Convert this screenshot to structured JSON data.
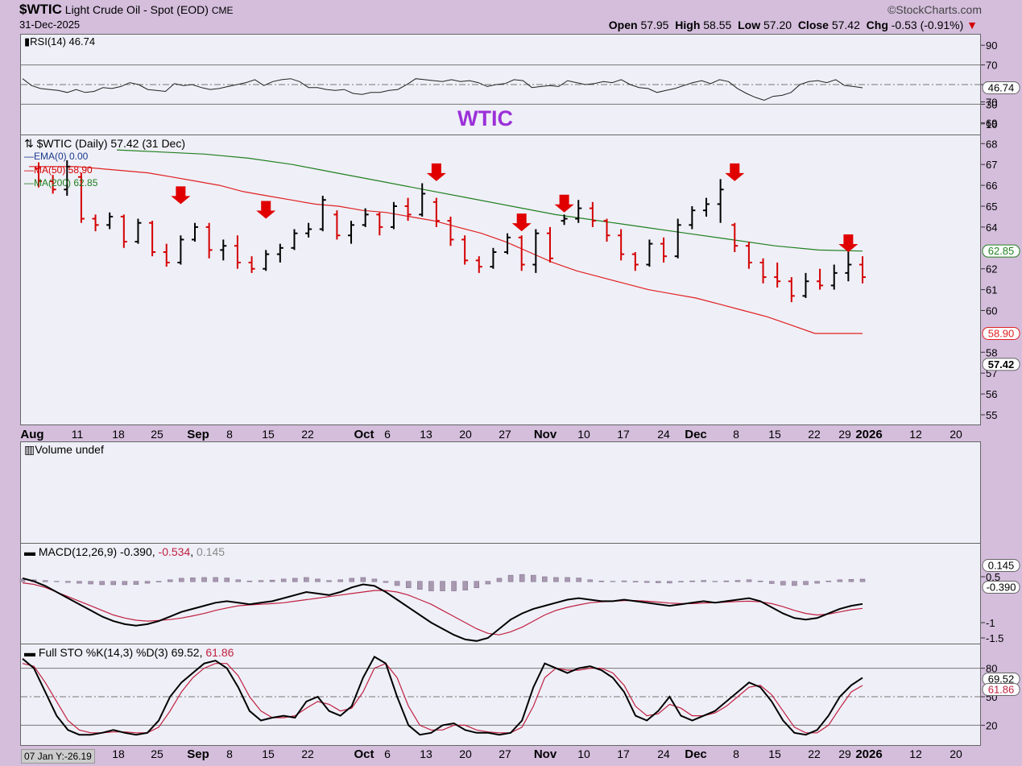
{
  "header": {
    "symbol": "$WTIC",
    "name": "Light Crude Oil - Spot (EOD)",
    "exchange": "CME",
    "date": "31-Dec-2025",
    "copyright": "©StockCharts.com",
    "open_label": "Open",
    "open": "57.95",
    "high_label": "High",
    "high": "58.55",
    "low_label": "Low",
    "low": "57.20",
    "close_label": "Close",
    "close": "57.42",
    "chg_label": "Chg",
    "chg": "-0.53 (-0.91%)",
    "chg_arrow": "▼"
  },
  "annotation": "WTIC",
  "cursor_readout": "07 Jan Y:-26.19",
  "x_axis": {
    "labels": [
      "Aug",
      "11",
      "18",
      "25",
      "Sep",
      "8",
      "15",
      "22",
      "Oct",
      "6",
      "13",
      "20",
      "27",
      "Nov",
      "10",
      "17",
      "24",
      "Dec",
      "8",
      "15",
      "22",
      "29",
      "2026",
      "12",
      "20"
    ],
    "bold": [
      "Aug",
      "Sep",
      "Oct",
      "Nov",
      "Dec",
      "2026"
    ]
  },
  "colors": {
    "background": "#d4bedc",
    "panel": "#efeff7",
    "up_bar": "#000000",
    "down_bar": "#d40000",
    "ma50": "#e02020",
    "ma200": "#208020",
    "ema": "#1a3a8a",
    "rsi": "#222222",
    "macd": "#000000",
    "signal": "#c02040",
    "histogram": "#a898b0",
    "annotation": "#9b30d9",
    "arrow": "#e00000"
  },
  "chart_data": [
    {
      "type": "line",
      "title": "RSI(14) 46.74",
      "series": [
        {
          "name": "RSI(14)",
          "values": [
            56,
            49,
            46,
            45,
            44,
            42,
            45,
            42,
            43,
            47,
            46,
            48,
            52,
            50,
            45,
            44,
            43,
            51,
            49,
            50,
            47,
            45,
            46,
            48,
            50,
            52,
            55,
            49,
            53,
            55,
            56,
            53,
            47,
            47,
            45,
            44,
            45,
            41,
            40,
            42,
            42,
            44,
            45,
            50,
            56,
            55,
            54,
            53,
            55,
            53,
            54,
            52,
            48,
            50,
            51,
            55,
            54,
            47,
            48,
            49,
            48,
            54,
            52,
            50,
            51,
            53,
            52,
            55,
            50,
            47,
            46,
            42,
            44,
            46,
            49,
            52,
            54,
            51,
            55,
            53,
            46,
            41,
            37,
            34,
            38,
            39,
            42,
            50,
            53,
            54,
            52,
            55,
            49,
            48,
            46.74
          ]
        }
      ],
      "ylim": [
        0,
        100
      ],
      "y_ticks": [
        90,
        70,
        50,
        30,
        10
      ],
      "reference_lines": [
        70,
        50,
        30
      ],
      "last_value": "46.74"
    },
    {
      "type": "bar",
      "title": "$WTIC (Daily) 57.42 (31 Dec)",
      "ohlc": [
        [
          66.8,
          67.1,
          65.9,
          66.2
        ],
        [
          66.2,
          66.5,
          65.6,
          65.8
        ],
        [
          65.8,
          67.2,
          65.5,
          66.9
        ],
        [
          66.4,
          66.6,
          64.2,
          64.4
        ],
        [
          64.4,
          64.6,
          63.8,
          64.1
        ],
        [
          64.1,
          64.7,
          63.9,
          64.5
        ],
        [
          64.5,
          64.6,
          63.0,
          63.3
        ],
        [
          63.3,
          64.4,
          63.2,
          64.2
        ],
        [
          64.2,
          64.3,
          62.6,
          62.8
        ],
        [
          62.8,
          63.2,
          62.1,
          62.3
        ],
        [
          62.3,
          63.6,
          62.2,
          63.4
        ],
        [
          63.4,
          64.2,
          63.3,
          64.0
        ],
        [
          64.0,
          64.2,
          62.5,
          62.9
        ],
        [
          62.9,
          63.4,
          62.4,
          63.1
        ],
        [
          63.1,
          63.6,
          62.0,
          62.3
        ],
        [
          62.3,
          62.6,
          61.8,
          62.0
        ],
        [
          62.0,
          62.9,
          61.9,
          62.7
        ],
        [
          62.7,
          63.2,
          62.3,
          63.0
        ],
        [
          63.0,
          63.9,
          62.9,
          63.7
        ],
        [
          63.7,
          64.2,
          63.5,
          63.9
        ],
        [
          63.9,
          65.5,
          63.8,
          65.3
        ],
        [
          64.6,
          64.8,
          63.4,
          63.6
        ],
        [
          63.6,
          64.3,
          63.2,
          64.1
        ],
        [
          64.1,
          64.9,
          64.0,
          64.6
        ],
        [
          64.6,
          64.7,
          63.6,
          64.0
        ],
        [
          64.0,
          65.2,
          63.9,
          65.0
        ],
        [
          65.0,
          65.4,
          64.3,
          64.6
        ],
        [
          64.6,
          66.1,
          64.5,
          65.6
        ],
        [
          65.2,
          65.4,
          64.0,
          64.3
        ],
        [
          64.3,
          64.5,
          63.1,
          63.4
        ],
        [
          63.4,
          63.6,
          62.2,
          62.4
        ],
        [
          62.4,
          62.6,
          61.8,
          62.1
        ],
        [
          62.1,
          63.0,
          62.0,
          62.8
        ],
        [
          62.8,
          63.7,
          62.7,
          63.5
        ],
        [
          63.5,
          63.6,
          61.9,
          62.2
        ],
        [
          62.2,
          63.9,
          61.8,
          63.7
        ],
        [
          63.7,
          64.0,
          62.3,
          62.5
        ],
        [
          64.3,
          64.6,
          64.1,
          64.4
        ],
        [
          64.4,
          65.3,
          64.2,
          64.9
        ],
        [
          64.9,
          65.2,
          64.0,
          64.3
        ],
        [
          64.3,
          64.4,
          63.3,
          63.6
        ],
        [
          63.6,
          63.9,
          62.4,
          62.7
        ],
        [
          62.7,
          62.8,
          61.9,
          62.2
        ],
        [
          62.2,
          63.4,
          62.1,
          63.2
        ],
        [
          63.2,
          63.5,
          62.3,
          62.6
        ],
        [
          62.6,
          64.4,
          62.5,
          64.1
        ],
        [
          64.1,
          65.0,
          63.9,
          64.8
        ],
        [
          64.8,
          65.4,
          64.5,
          65.1
        ],
        [
          65.1,
          66.3,
          64.2,
          65.8
        ],
        [
          64.1,
          64.2,
          62.8,
          63.1
        ],
        [
          63.1,
          63.3,
          62.0,
          62.3
        ],
        [
          62.3,
          62.5,
          61.3,
          61.6
        ],
        [
          61.6,
          62.3,
          61.1,
          61.4
        ],
        [
          61.4,
          61.6,
          60.4,
          60.7
        ],
        [
          60.7,
          61.8,
          60.6,
          61.4
        ],
        [
          61.4,
          62.0,
          61.0,
          61.2
        ],
        [
          61.2,
          62.2,
          61.0,
          61.8
        ],
        [
          61.8,
          63.5,
          61.4,
          62.2
        ],
        [
          62.2,
          62.6,
          61.3,
          61.6
        ]
      ],
      "ylim": [
        54.5,
        70.5
      ],
      "y_ticks": [
        70,
        69,
        68,
        67,
        66,
        65,
        64,
        62,
        61,
        60,
        58,
        57,
        56,
        55
      ],
      "series": [
        {
          "name": "EMA(0) 0.00",
          "values": []
        },
        {
          "name": "MA(50) 58.90",
          "values": [
            66.9,
            66.9,
            66.9,
            66.8,
            66.7,
            66.6,
            66.4,
            66.2,
            66.0,
            65.7,
            65.5,
            65.3,
            65.1,
            65.0,
            64.8,
            64.7,
            64.5,
            64.3,
            64.0,
            63.7,
            63.3,
            62.8,
            62.3,
            61.9,
            61.6,
            61.3,
            61.0,
            60.8,
            60.6,
            60.3,
            60.0,
            59.7,
            59.3,
            58.9,
            58.9,
            58.9
          ]
        },
        {
          "name": "MA(200) 62.85",
          "values": [
            67.7,
            67.6,
            67.5,
            67.3,
            67.0,
            66.6,
            66.2,
            65.8,
            65.4,
            65.0,
            64.6,
            64.3,
            64.0,
            63.7,
            63.4,
            63.1,
            62.9,
            62.85
          ]
        }
      ],
      "resistance_arrows": [
        "Sep 2",
        "Sep 16",
        "Oct 24",
        "Nov 12",
        "Nov 19",
        "Dec 9",
        "Dec 26"
      ],
      "last_values": {
        "close": "57.42",
        "ma50": "58.90",
        "ma200": "62.85"
      }
    },
    {
      "type": "bar",
      "title": "Volume undef",
      "values": []
    },
    {
      "type": "line",
      "title": "MACD(12,26,9)",
      "legend": {
        "macd": "-0.390",
        "signal": "-0.534",
        "histogram": "0.145"
      },
      "series": [
        {
          "name": "MACD",
          "values": [
            0.45,
            0.35,
            0.2,
            0.0,
            -0.2,
            -0.4,
            -0.6,
            -0.8,
            -0.95,
            -1.05,
            -1.1,
            -1.05,
            -0.95,
            -0.8,
            -0.65,
            -0.55,
            -0.45,
            -0.35,
            -0.3,
            -0.35,
            -0.4,
            -0.35,
            -0.3,
            -0.2,
            -0.1,
            0.0,
            -0.05,
            -0.1,
            0.0,
            0.15,
            0.25,
            0.2,
            0.0,
            -0.25,
            -0.5,
            -0.75,
            -1.0,
            -1.2,
            -1.4,
            -1.55,
            -1.6,
            -1.5,
            -1.2,
            -0.9,
            -0.7,
            -0.55,
            -0.45,
            -0.35,
            -0.25,
            -0.2,
            -0.25,
            -0.3,
            -0.3,
            -0.25,
            -0.3,
            -0.35,
            -0.4,
            -0.45,
            -0.4,
            -0.35,
            -0.3,
            -0.35,
            -0.3,
            -0.25,
            -0.2,
            -0.3,
            -0.5,
            -0.7,
            -0.85,
            -0.9,
            -0.85,
            -0.7,
            -0.55,
            -0.45,
            -0.39
          ]
        },
        {
          "name": "Signal",
          "values": [
            0.3,
            0.25,
            0.15,
            0.0,
            -0.15,
            -0.3,
            -0.45,
            -0.6,
            -0.75,
            -0.85,
            -0.92,
            -0.95,
            -0.93,
            -0.9,
            -0.85,
            -0.78,
            -0.7,
            -0.6,
            -0.52,
            -0.45,
            -0.42,
            -0.4,
            -0.38,
            -0.35,
            -0.3,
            -0.25,
            -0.2,
            -0.15,
            -0.1,
            -0.05,
            0.0,
            0.05,
            0.05,
            0.0,
            -0.1,
            -0.25,
            -0.4,
            -0.6,
            -0.8,
            -1.0,
            -1.2,
            -1.35,
            -1.4,
            -1.3,
            -1.15,
            -0.95,
            -0.75,
            -0.6,
            -0.5,
            -0.42,
            -0.35,
            -0.32,
            -0.3,
            -0.28,
            -0.28,
            -0.3,
            -0.33,
            -0.36,
            -0.38,
            -0.38,
            -0.36,
            -0.35,
            -0.33,
            -0.31,
            -0.3,
            -0.32,
            -0.38,
            -0.48,
            -0.6,
            -0.7,
            -0.75,
            -0.72,
            -0.65,
            -0.58,
            -0.534
          ]
        }
      ],
      "ylim": [
        -1.8,
        0.7
      ],
      "y_ticks": [
        0.5,
        -1.0,
        -1.5
      ],
      "last_values": {
        "histogram": "0.145",
        "macd": "-0.390"
      }
    },
    {
      "type": "line",
      "title": "Full STO %K(14,3) %D(3)",
      "legend": {
        "k": "69.52",
        "d": "61.86"
      },
      "series": [
        {
          "name": "%K",
          "values": [
            90,
            80,
            55,
            30,
            15,
            10,
            10,
            12,
            15,
            12,
            10,
            12,
            25,
            50,
            65,
            75,
            85,
            88,
            80,
            60,
            35,
            25,
            28,
            30,
            28,
            45,
            50,
            35,
            30,
            40,
            70,
            92,
            85,
            50,
            20,
            10,
            12,
            20,
            22,
            15,
            12,
            12,
            10,
            12,
            25,
            60,
            85,
            80,
            75,
            80,
            82,
            78,
            70,
            55,
            30,
            25,
            35,
            50,
            30,
            25,
            30,
            35,
            45,
            55,
            65,
            60,
            45,
            25,
            12,
            10,
            15,
            30,
            50,
            62,
            70
          ]
        },
        {
          "name": "%D",
          "values": [
            85,
            82,
            65,
            45,
            25,
            15,
            12,
            12,
            13,
            13,
            12,
            12,
            18,
            35,
            55,
            70,
            80,
            85,
            85,
            72,
            50,
            35,
            28,
            28,
            30,
            38,
            45,
            42,
            35,
            38,
            55,
            80,
            85,
            70,
            40,
            20,
            15,
            15,
            20,
            20,
            15,
            13,
            12,
            12,
            18,
            40,
            70,
            80,
            78,
            78,
            80,
            80,
            75,
            62,
            40,
            30,
            32,
            42,
            38,
            30,
            30,
            33,
            40,
            50,
            60,
            62,
            52,
            35,
            18,
            12,
            12,
            20,
            38,
            55,
            61.86
          ]
        }
      ],
      "ylim": [
        0,
        100
      ],
      "y_ticks": [
        80,
        50,
        20
      ],
      "reference_lines": [
        80,
        50,
        20
      ],
      "last_values": {
        "k": "69.52",
        "d": "61.86"
      }
    }
  ]
}
